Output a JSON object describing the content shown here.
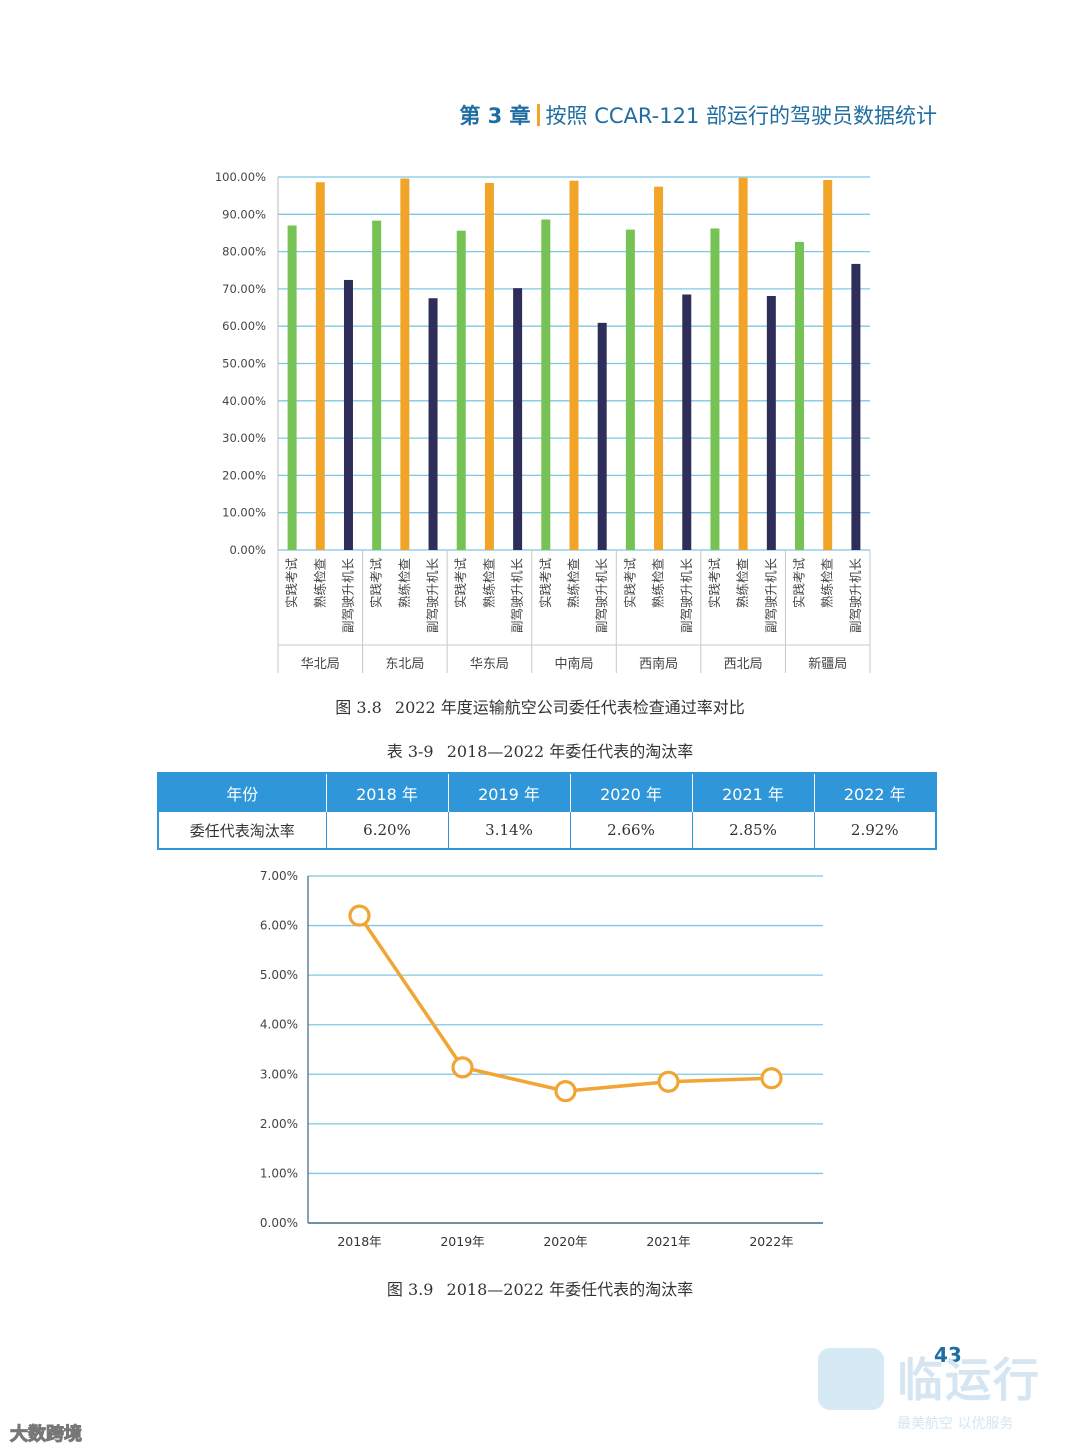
{
  "header": {
    "chapter": "第 3 章",
    "title": "按照 CCAR-121 部运行的驾驶员数据统计"
  },
  "figure_3_8": {
    "caption_num": "图 3.8",
    "caption_text": "2022 年度运输航空公司委任代表检查通过率对比"
  },
  "table_3_9": {
    "caption_num": "表 3-9",
    "caption_text": "2018—2022 年委任代表的淘汰率",
    "headers": [
      "年份",
      "2018 年",
      "2019 年",
      "2020 年",
      "2021 年",
      "2022 年"
    ],
    "row_label": "委任代表淘汰率",
    "values": [
      "6.20%",
      "3.14%",
      "2.66%",
      "2.85%",
      "2.92%"
    ]
  },
  "figure_3_9": {
    "caption_num": "图 3.9",
    "caption_text": "2018—2022 年委任代表的淘汰率"
  },
  "page_number": "43",
  "watermark": {
    "brand": "临运行",
    "sub": "最美航空 以优服务",
    "bottom": "大数跨境"
  },
  "colors": {
    "green": "#76c254",
    "orange": "#f2a428",
    "navy": "#2d2e59",
    "grid": "#7ec8e3",
    "line": "#f0a534"
  },
  "chart_data": [
    {
      "type": "bar",
      "ylim": [
        0,
        100
      ],
      "yticks": [
        "0.00%",
        "10.00%",
        "20.00%",
        "30.00%",
        "40.00%",
        "50.00%",
        "60.00%",
        "70.00%",
        "80.00%",
        "90.00%",
        "100.00%"
      ],
      "groups": [
        "华北局",
        "东北局",
        "华东局",
        "中南局",
        "西南局",
        "西北局",
        "新疆局"
      ],
      "series_labels": [
        "实践考试",
        "熟练检查",
        "副驾驶升机长"
      ],
      "series": [
        {
          "name": "实践考试",
          "color": "#76c254",
          "values": [
            87.0,
            88.3,
            85.6,
            88.6,
            85.9,
            86.2,
            82.6
          ]
        },
        {
          "name": "熟练检查",
          "color": "#f2a428",
          "values": [
            98.6,
            99.6,
            98.4,
            99.0,
            97.4,
            99.8,
            99.2
          ]
        },
        {
          "name": "副驾驶升机长",
          "color": "#2d2e59",
          "values": [
            72.4,
            67.5,
            70.2,
            60.9,
            68.5,
            68.1,
            76.7
          ]
        }
      ],
      "grid": true
    },
    {
      "type": "line",
      "categories": [
        "2018年",
        "2019年",
        "2020年",
        "2021年",
        "2022年"
      ],
      "values": [
        6.2,
        3.14,
        2.66,
        2.85,
        2.92
      ],
      "ylim": [
        0,
        7
      ],
      "yticks": [
        "0.00%",
        "1.00%",
        "2.00%",
        "3.00%",
        "4.00%",
        "5.00%",
        "6.00%",
        "7.00%"
      ],
      "grid": true
    }
  ]
}
